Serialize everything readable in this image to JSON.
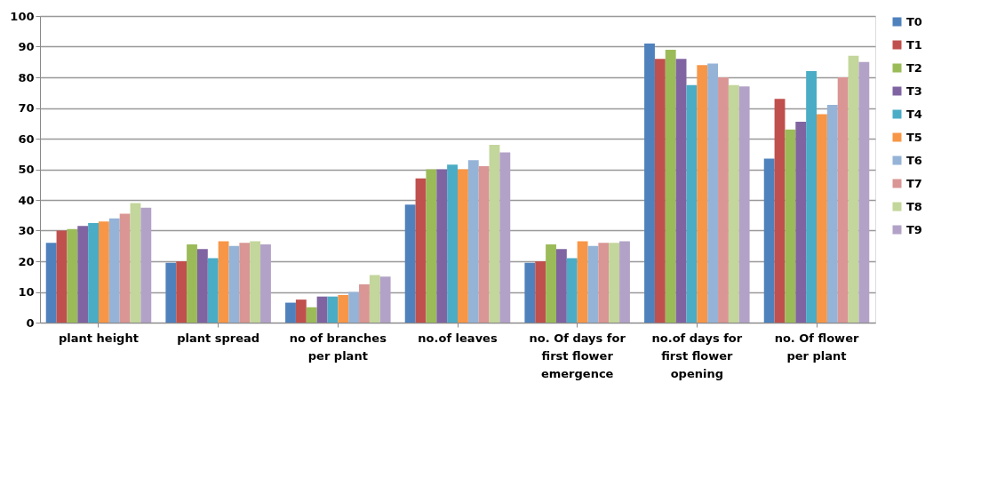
{
  "chart_data": {
    "type": "bar",
    "categories": [
      "plant height",
      "plant spread",
      "no of branches per plant",
      "no.of leaves",
      "no. Of days for first flower emergence",
      "no.of days for first flower opening",
      "no. Of flower per plant"
    ],
    "ylim": [
      0,
      100
    ],
    "yticks": [
      0,
      10,
      20,
      30,
      40,
      50,
      60,
      70,
      80,
      90,
      100
    ],
    "grid": "y",
    "legend": "right",
    "series": [
      {
        "name": "T0",
        "color": "#4f81bd",
        "values": [
          26,
          19.5,
          6.5,
          38.5,
          19.5,
          91,
          53.5
        ]
      },
      {
        "name": "T1",
        "color": "#c0504d",
        "values": [
          30,
          20,
          7.5,
          47,
          20,
          86,
          73
        ]
      },
      {
        "name": "T2",
        "color": "#9bbb59",
        "values": [
          30.5,
          25.5,
          5,
          50,
          25.5,
          89,
          63
        ]
      },
      {
        "name": "T3",
        "color": "#8064a2",
        "values": [
          31.5,
          24,
          8.5,
          50,
          24,
          86,
          65.5
        ]
      },
      {
        "name": "T4",
        "color": "#4bacc6",
        "values": [
          32.5,
          21,
          8.5,
          51.5,
          21,
          77.5,
          82
        ]
      },
      {
        "name": "T5",
        "color": "#f79646",
        "values": [
          33,
          26.5,
          9,
          50,
          26.5,
          84,
          68
        ]
      },
      {
        "name": "T6",
        "color": "#95b3d7",
        "values": [
          34,
          25,
          10,
          53,
          25,
          84.5,
          71
        ]
      },
      {
        "name": "T7",
        "color": "#d99694",
        "values": [
          35.5,
          26,
          12.5,
          51,
          26,
          80,
          80
        ]
      },
      {
        "name": "T8",
        "color": "#c3d69b",
        "values": [
          39,
          26.5,
          15.5,
          58,
          26,
          77.5,
          87
        ]
      },
      {
        "name": "T9",
        "color": "#b3a2c7",
        "values": [
          37.5,
          25.5,
          15,
          55.5,
          26.5,
          77,
          85
        ]
      }
    ]
  }
}
